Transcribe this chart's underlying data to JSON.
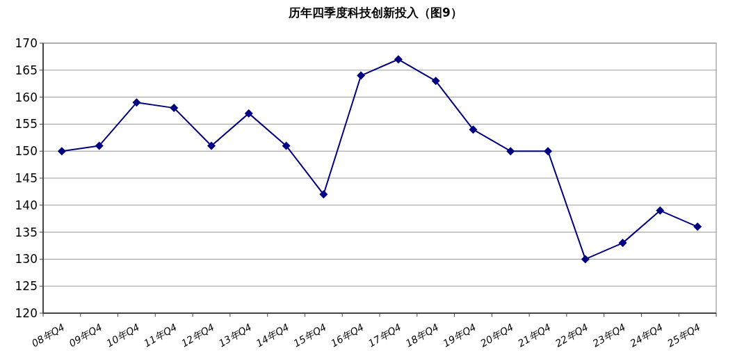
{
  "chart_data": {
    "type": "line",
    "title": "历年四季度科技创新投入（图9）",
    "categories": [
      "08年Q4",
      "09年Q4",
      "10年Q4",
      "11年Q4",
      "12年Q4",
      "13年Q4",
      "14年Q4",
      "15年Q4",
      "16年Q4",
      "17年Q4",
      "18年Q4",
      "19年Q4",
      "20年Q4",
      "21年Q4",
      "22年Q4",
      "23年Q4",
      "24年Q4",
      "25年Q4"
    ],
    "series": [
      {
        "color": "#000080",
        "values": [
          150,
          151,
          159,
          158,
          151,
          157,
          151,
          142,
          164,
          167,
          163,
          154,
          150,
          150,
          130,
          133,
          139,
          136
        ]
      }
    ],
    "ylim": [
      120,
      170
    ],
    "yticks": [
      120,
      125,
      130,
      135,
      140,
      145,
      150,
      155,
      160,
      165,
      170
    ],
    "grid": "y",
    "marker": "diamond",
    "line_style": "solid"
  }
}
